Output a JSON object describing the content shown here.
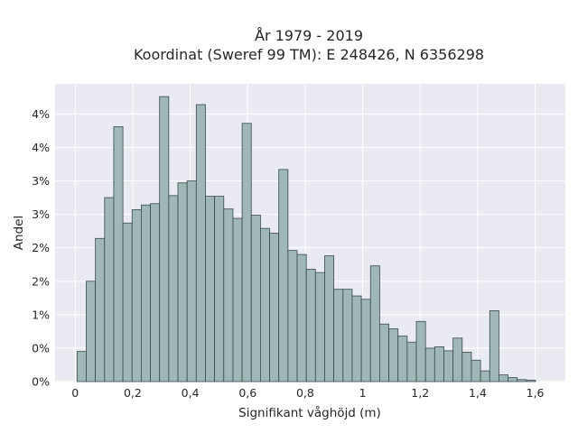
{
  "chart_data": {
    "type": "bar",
    "title_lines": [
      "År 1979 - 2019",
      "Koordinat (Sweref 99 TM): E 248426, N 6356298"
    ],
    "xlabel": "Signifikant våghöjd (m)",
    "ylabel": "Andel",
    "x_ticks": [
      0,
      0.2,
      0.4,
      0.6,
      0.8,
      1.0,
      1.2,
      1.4,
      1.6
    ],
    "x_tick_labels": [
      "0",
      "0,2",
      "0,4",
      "0,6",
      "0,8",
      "1",
      "1,2",
      "1,4",
      "1,6"
    ],
    "y_tick_labels": [
      "0%",
      "0%",
      "1%",
      "2%",
      "2%",
      "3%",
      "3%",
      "4%",
      "4%"
    ],
    "xlim": [
      -0.07,
      1.705
    ],
    "ylim": [
      0,
      0.0445
    ],
    "grid": true,
    "bin_start": 0.0064,
    "bin_width": 0.0319,
    "values": [
      0.0045,
      0.015,
      0.0214,
      0.0275,
      0.0381,
      0.0237,
      0.0257,
      0.0264,
      0.0266,
      0.0426,
      0.0278,
      0.0297,
      0.03,
      0.0414,
      0.0277,
      0.0277,
      0.0258,
      0.0244,
      0.0386,
      0.0249,
      0.0229,
      0.0222,
      0.0317,
      0.0196,
      0.019,
      0.0168,
      0.0163,
      0.0188,
      0.0138,
      0.0138,
      0.0128,
      0.0123,
      0.0173,
      0.0086,
      0.0079,
      0.0068,
      0.0059,
      0.009,
      0.005,
      0.0052,
      0.0046,
      0.0065,
      0.0044,
      0.0032,
      0.0016,
      0.0106,
      0.001,
      0.0006,
      0.0003,
      0.0002
    ],
    "colors": {
      "bar_fill": "#9fb7b7",
      "bar_edge": "#3a4a4a",
      "plot_bg": "#eaeaf2",
      "grid": "#ffffff"
    }
  }
}
